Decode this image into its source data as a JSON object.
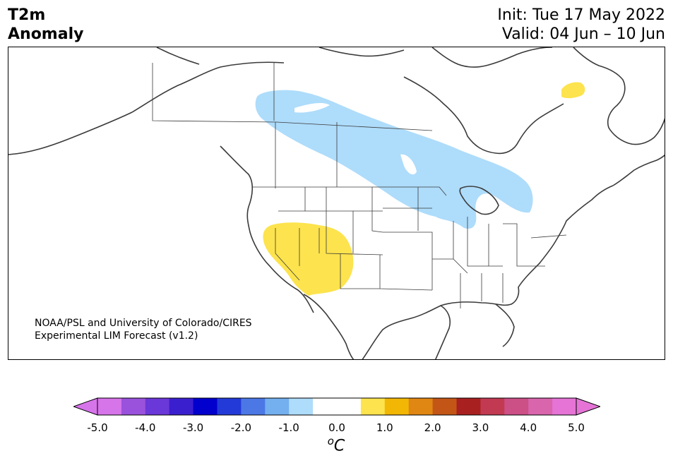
{
  "header": {
    "variable": "T2m",
    "subtitle": "Anomaly",
    "init": "Init: Tue 17 May 2022",
    "valid": "Valid: 04 Jun – 10 Jun"
  },
  "credit": {
    "line1": "NOAA/PSL and University of Colorado/CIRES",
    "line2": "Experimental LIM Forecast (v1.2)"
  },
  "map": {
    "region": "North America",
    "anomaly_areas": [
      {
        "label": "cool anomaly",
        "category": "-1.0 to -0.5",
        "color": "#aedcfb"
      },
      {
        "label": "warm anomaly southwest",
        "category": "0.5 to 1.0",
        "color": "#fde34d"
      },
      {
        "label": "warm anomaly northeast",
        "category": "0.5 to 1.0",
        "color": "#fde34d"
      }
    ]
  },
  "colorbar": {
    "unit_symbol": "o",
    "unit_letter": "C",
    "tick_labels": [
      "-5.0",
      "-4.0",
      "-3.0",
      "-2.0",
      "-1.0",
      "0.0",
      "1.0",
      "2.0",
      "3.0",
      "4.0",
      "5.0"
    ],
    "colors": [
      "#d674ea",
      "#9a52dc",
      "#6a37d8",
      "#3a1fcf",
      "#0200cc",
      "#233ad8",
      "#4c78e6",
      "#74aff0",
      "#aedcfb",
      "#ffffff",
      "#ffffff",
      "#fde34d",
      "#f2b705",
      "#e08613",
      "#c35616",
      "#a82020",
      "#c23a52",
      "#cc4f86",
      "#d965ad",
      "#e574d6"
    ],
    "extend_min_color": "#d674ea",
    "extend_max_color": "#e574d6"
  }
}
